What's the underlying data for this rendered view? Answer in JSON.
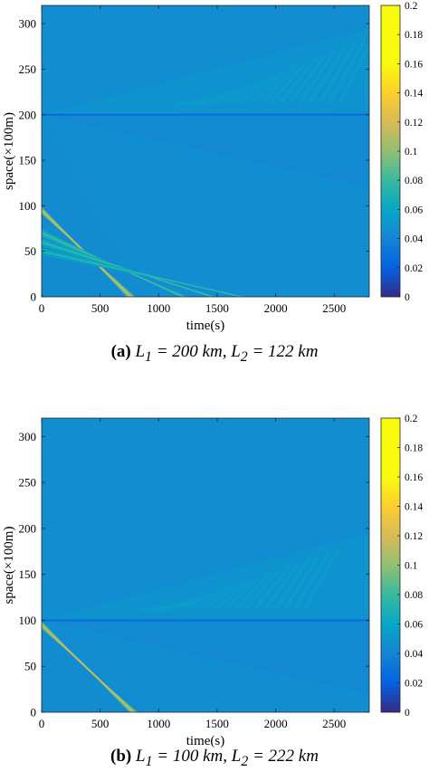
{
  "chart_data": [
    {
      "type": "heatmap",
      "panel_label": "(a)",
      "caption": "L1 = 200 km,  L2 = 122 km",
      "caption_parts": {
        "l1_name": "L",
        "l1_sub": "1",
        "l1_value": "= 200 km,",
        "l2_name": "L",
        "l2_sub": "2",
        "l2_value": "= 122 km"
      },
      "xlabel": "time(s)",
      "ylabel": "space(×100m)",
      "xlim": [
        0,
        2800
      ],
      "ylim": [
        0,
        320
      ],
      "xticks": [
        0,
        500,
        1000,
        1500,
        2000,
        2500
      ],
      "yticks": [
        0,
        50,
        100,
        150,
        200,
        250,
        300
      ],
      "colorbar": {
        "min": 0,
        "max": 0.2,
        "ticks": [
          0,
          0.02,
          0.04,
          0.06,
          0.08,
          0.1,
          0.12,
          0.14,
          0.16,
          0.18,
          0.2
        ]
      },
      "background_value": 0.045,
      "junction_space": 200,
      "features": {
        "junction_line_value": 0.025,
        "upstream_waves": [
          {
            "space_start": 95,
            "time_end": 800,
            "value": 0.09
          },
          {
            "space_start": 70,
            "time_end": 1250,
            "value": 0.065
          },
          {
            "space_start": 60,
            "time_end": 1500,
            "value": 0.062
          },
          {
            "space_start": 50,
            "time_end": 1750,
            "value": 0.058
          }
        ],
        "downstream_stripes": {
          "time_start": 1300,
          "space_min": 212,
          "space_max": 290,
          "value": 0.055
        }
      }
    },
    {
      "type": "heatmap",
      "panel_label": "(b)",
      "caption": "L1 = 100 km,  L2 = 222 km",
      "caption_parts": {
        "l1_name": "L",
        "l1_sub": "1",
        "l1_value": "= 100 km,",
        "l2_name": "L",
        "l2_sub": "2",
        "l2_value": "= 222 km"
      },
      "xlabel": "time(s)",
      "ylabel": "space(×100m)",
      "xlim": [
        0,
        2800
      ],
      "ylim": [
        0,
        320
      ],
      "xticks": [
        0,
        500,
        1000,
        1500,
        2000,
        2500
      ],
      "yticks": [
        0,
        50,
        100,
        150,
        200,
        250,
        300
      ],
      "colorbar": {
        "min": 0,
        "max": 0.2,
        "ticks": [
          0,
          0.02,
          0.04,
          0.06,
          0.08,
          0.1,
          0.12,
          0.14,
          0.16,
          0.18,
          0.2
        ]
      },
      "background_value": 0.045,
      "junction_space": 100,
      "features": {
        "junction_line_value": 0.025,
        "upstream_waves": [
          {
            "space_start": 95,
            "time_end": 820,
            "value": 0.09
          }
        ],
        "downstream_stripes": {
          "time_start": 1000,
          "space_min": 112,
          "space_max": 195,
          "value": 0.055
        }
      }
    }
  ],
  "colors": {
    "background": "#2a7de0",
    "band_light": "#3f9ae6",
    "band_dark": "#1e5fd0",
    "wave": "#35c2a0"
  }
}
